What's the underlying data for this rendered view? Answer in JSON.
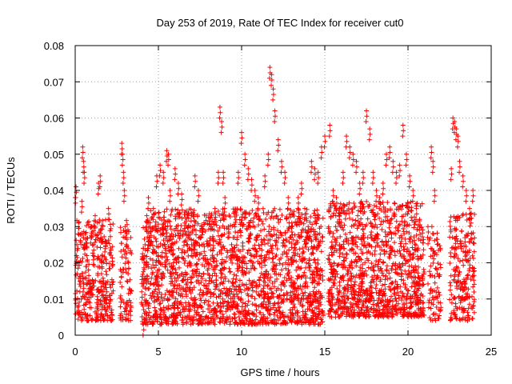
{
  "chart_data": {
    "type": "scatter",
    "title": "Day 253 of 2019, Rate Of TEC Index for receiver cut0",
    "xlabel": "GPS time / hours",
    "ylabel": "ROTI / TECUs",
    "xlim": [
      0,
      25
    ],
    "ylim": [
      0,
      0.08
    ],
    "x_ticks": [
      "0",
      "5",
      "10",
      "15",
      "20",
      "25"
    ],
    "y_ticks": [
      "0",
      "0.01",
      "0.02",
      "0.03",
      "0.04",
      "0.05",
      "0.06",
      "0.07",
      "0.08"
    ],
    "grid": true,
    "marker": "+",
    "color": "#ff0000",
    "series": [
      {
        "x": [
          0.0,
          0.05,
          0.1,
          0.15,
          0.2,
          0.3,
          0.4,
          0.45,
          0.5,
          0.55,
          0.6,
          0.7,
          0.8,
          0.9,
          1.0,
          1.1,
          1.2,
          1.3,
          1.4,
          1.5,
          1.6,
          1.7,
          1.8,
          1.9,
          2.0,
          2.1,
          2.2,
          2.8,
          2.85,
          2.9,
          2.95,
          3.0,
          3.1,
          3.2,
          4.0,
          4.1,
          4.2,
          4.3,
          4.4,
          4.5,
          4.7,
          4.9,
          5.1,
          5.3,
          5.5,
          5.6,
          5.7,
          5.8,
          5.9,
          6.0,
          6.2,
          6.4,
          6.6,
          6.8,
          7.0,
          7.2,
          7.4,
          7.6,
          7.8,
          8.0,
          8.2,
          8.4,
          8.6,
          8.7,
          8.8,
          8.9,
          9.0,
          9.2,
          9.4,
          9.6,
          9.8,
          10.0,
          10.2,
          10.4,
          10.6,
          10.8,
          11.0,
          11.2,
          11.4,
          11.6,
          11.7,
          11.8,
          11.9,
          12.0,
          12.2,
          12.4,
          12.6,
          12.8,
          13.0,
          13.2,
          13.4,
          13.6,
          13.8,
          14.0,
          14.2,
          14.4,
          14.6,
          14.8,
          15.0,
          15.3,
          15.5,
          15.7,
          15.9,
          16.1,
          16.3,
          16.5,
          16.7,
          16.9,
          17.1,
          17.3,
          17.5,
          17.7,
          17.9,
          18.1,
          18.3,
          18.5,
          18.7,
          18.9,
          19.1,
          19.3,
          19.5,
          19.7,
          19.9,
          20.1,
          20.3,
          20.5,
          20.7,
          21.2,
          21.4,
          21.5,
          21.6,
          22.6,
          22.7,
          22.8,
          22.9,
          23.0,
          23.1,
          23.3,
          23.5,
          23.7,
          23.9
        ],
        "y": [
          0.038,
          0.041,
          0.025,
          0.02,
          0.031,
          0.015,
          0.037,
          0.052,
          0.048,
          0.045,
          0.028,
          0.022,
          0.018,
          0.012,
          0.03,
          0.025,
          0.033,
          0.009,
          0.042,
          0.044,
          0.02,
          0.015,
          0.026,
          0.012,
          0.035,
          0.011,
          0.007,
          0.053,
          0.05,
          0.045,
          0.04,
          0.03,
          0.028,
          0.02,
          0.012,
          0.003,
          0.025,
          0.033,
          0.038,
          0.03,
          0.035,
          0.044,
          0.047,
          0.045,
          0.051,
          0.05,
          0.04,
          0.028,
          0.02,
          0.046,
          0.042,
          0.039,
          0.034,
          0.03,
          0.025,
          0.044,
          0.04,
          0.03,
          0.022,
          0.02,
          0.033,
          0.035,
          0.045,
          0.063,
          0.059,
          0.045,
          0.038,
          0.03,
          0.025,
          0.03,
          0.045,
          0.056,
          0.05,
          0.046,
          0.043,
          0.04,
          0.038,
          0.025,
          0.044,
          0.05,
          0.074,
          0.072,
          0.068,
          0.062,
          0.054,
          0.048,
          0.045,
          0.038,
          0.03,
          0.025,
          0.038,
          0.042,
          0.035,
          0.03,
          0.048,
          0.046,
          0.045,
          0.052,
          0.055,
          0.058,
          0.04,
          0.038,
          0.035,
          0.045,
          0.055,
          0.052,
          0.05,
          0.048,
          0.042,
          0.045,
          0.062,
          0.057,
          0.045,
          0.04,
          0.038,
          0.042,
          0.05,
          0.052,
          0.048,
          0.045,
          0.047,
          0.058,
          0.05,
          0.044,
          0.04,
          0.035,
          0.032,
          0.03,
          0.052,
          0.048,
          0.04,
          0.046,
          0.06,
          0.059,
          0.057,
          0.055,
          0.048,
          0.044,
          0.04,
          0.035,
          0.04
        ]
      }
    ],
    "note_bands": [
      {
        "x_from": 0.0,
        "x_to": 2.3,
        "y_from": 0.004,
        "y_to": 0.032,
        "density": 0.65
      },
      {
        "x_from": 2.7,
        "x_to": 3.4,
        "y_from": 0.004,
        "y_to": 0.033,
        "density": 0.55
      },
      {
        "x_from": 4.0,
        "x_to": 14.9,
        "y_from": 0.003,
        "y_to": 0.035,
        "density": 0.85
      },
      {
        "x_from": 15.2,
        "x_to": 21.0,
        "y_from": 0.005,
        "y_to": 0.037,
        "density": 0.9
      },
      {
        "x_from": 21.2,
        "x_to": 22.0,
        "y_from": 0.004,
        "y_to": 0.03,
        "density": 0.5
      },
      {
        "x_from": 22.5,
        "x_to": 24.0,
        "y_from": 0.004,
        "y_to": 0.034,
        "density": 0.7
      }
    ]
  }
}
